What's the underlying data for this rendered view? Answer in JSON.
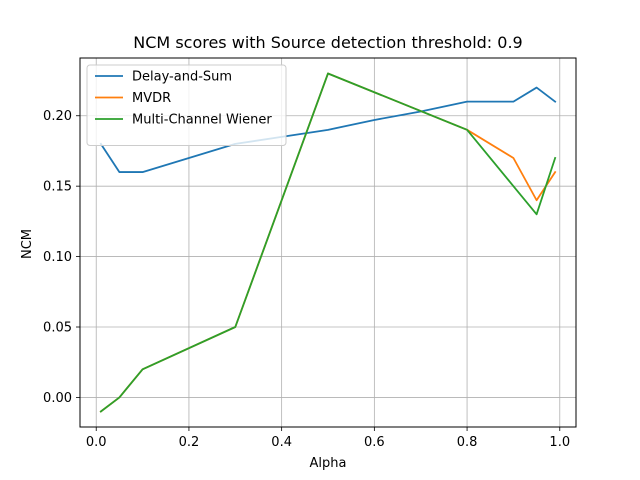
{
  "chart_data": {
    "type": "line",
    "title": "NCM scores with Source detection threshold: 0.9",
    "xlabel": "Alpha",
    "ylabel": "NCM",
    "xlim": [
      -0.035,
      1.035
    ],
    "ylim": [
      -0.021,
      0.241
    ],
    "xticks": [
      0.0,
      0.2,
      0.4,
      0.6,
      0.8,
      1.0
    ],
    "xtick_labels": [
      "0.0",
      "0.2",
      "0.4",
      "0.6",
      "0.8",
      "1.0"
    ],
    "yticks": [
      0.0,
      0.05,
      0.1,
      0.15,
      0.2
    ],
    "ytick_labels": [
      "0.00",
      "0.05",
      "0.10",
      "0.15",
      "0.20"
    ],
    "grid": true,
    "legend_position": "top-left",
    "series": [
      {
        "name": "Delay-and-Sum",
        "color": "#1f77b4",
        "x": [
          0.01,
          0.05,
          0.1,
          0.2,
          0.3,
          0.4,
          0.5,
          0.6,
          0.7,
          0.8,
          0.9,
          0.95,
          0.99
        ],
        "y": [
          0.18,
          0.16,
          0.16,
          0.17,
          0.18,
          0.185,
          0.19,
          0.197,
          0.203,
          0.21,
          0.21,
          0.22,
          0.21
        ]
      },
      {
        "name": "MVDR",
        "color": "#ff7f0e",
        "x": [
          0.01,
          0.05,
          0.1,
          0.3,
          0.5,
          0.8,
          0.9,
          0.95,
          0.99
        ],
        "y": [
          -0.01,
          0.0,
          0.02,
          0.05,
          0.23,
          0.19,
          0.17,
          0.14,
          0.16
        ]
      },
      {
        "name": "Multi-Channel Wiener",
        "color": "#2ca02c",
        "x": [
          0.01,
          0.05,
          0.1,
          0.3,
          0.5,
          0.8,
          0.9,
          0.95,
          0.99
        ],
        "y": [
          -0.01,
          0.0,
          0.02,
          0.05,
          0.23,
          0.19,
          0.15,
          0.13,
          0.17
        ]
      }
    ]
  }
}
